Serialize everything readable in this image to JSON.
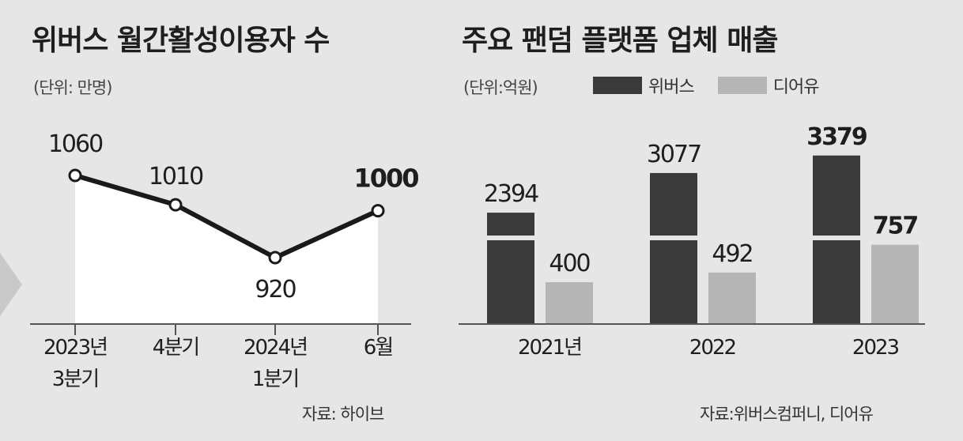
{
  "chart_data": [
    {
      "type": "line",
      "title": "위버스 월간활성이용자 수",
      "unit": "(단위: 만명)",
      "categories": [
        [
          "2023년",
          "3분기"
        ],
        [
          "4분기"
        ],
        [
          "2024년",
          "1분기"
        ],
        [
          "6월"
        ]
      ],
      "series": [
        {
          "values": [
            1060,
            1010,
            920,
            1000
          ],
          "color": "#1a1a1a"
        }
      ],
      "data_labels": [
        "1060",
        "1010",
        "920",
        "1000"
      ],
      "source": "자료: 하이브",
      "ylim": [
        800,
        1100
      ],
      "grid": false
    },
    {
      "type": "bar",
      "title": "주요 팬덤 플랫폼 업체 매출",
      "unit": "(단위:억원)",
      "categories": [
        "2021년",
        "2022",
        "2023"
      ],
      "series": [
        {
          "name": "위버스",
          "values": [
            2394,
            3077,
            3379
          ],
          "color": "#3a3a3a"
        },
        {
          "name": "디어유",
          "values": [
            400,
            492,
            757
          ],
          "color": "#b5b5b5"
        }
      ],
      "data_labels": {
        "위버스": [
          "2394",
          "3077",
          "3379"
        ],
        "디어유": [
          "400",
          "492",
          "757"
        ]
      },
      "axis_break": true,
      "legend_position": "top",
      "source": "자료:위버스컴퍼니, 디어유",
      "grid": false
    }
  ]
}
